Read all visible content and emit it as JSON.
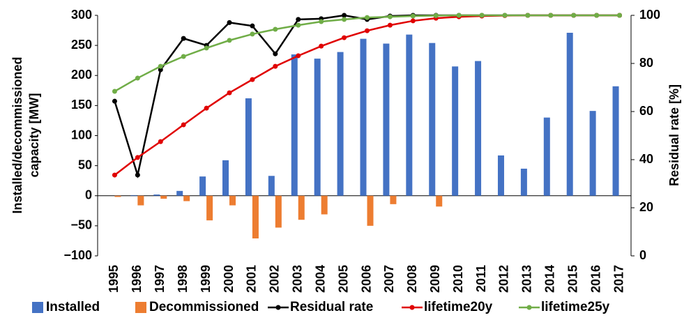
{
  "chart_data": {
    "type": "bar",
    "categories": [
      "1995",
      "1996",
      "1997",
      "1998",
      "1999",
      "2000",
      "2001",
      "2002",
      "2003",
      "2004",
      "2005",
      "2006",
      "2007",
      "2008",
      "2009",
      "2010",
      "2011",
      "2012",
      "2013",
      "2014",
      "2015",
      "2016",
      "2017"
    ],
    "ylabel": [
      "Installed/decommissioned",
      "capacity [MW]"
    ],
    "y2label": "Residual rate [%]",
    "ylim": [
      -100,
      300
    ],
    "yticks": [
      {
        "value": -100,
        "label": "−100"
      },
      {
        "value": -50,
        "label": "−50"
      },
      0,
      50,
      100,
      150,
      200,
      250,
      300
    ],
    "y2lim": [
      0,
      100
    ],
    "y2ticks": [
      0,
      20,
      40,
      60,
      80,
      100
    ],
    "series": [
      {
        "name": "Installed",
        "type": "bar",
        "color": "#4472c4",
        "values": [
          0,
          1,
          2,
          8,
          32,
          59,
          162,
          33,
          235,
          228,
          239,
          261,
          253,
          268,
          254,
          215,
          224,
          67,
          45,
          130,
          271,
          141,
          182
        ]
      },
      {
        "name": "Decommissioned",
        "type": "bar",
        "color": "#ed7d31",
        "values": [
          -2,
          -16,
          -5,
          -9,
          -41,
          -16,
          -71,
          -53,
          -40,
          -31,
          0,
          -50,
          -14,
          0,
          -18,
          0,
          0,
          0,
          0,
          0,
          0,
          0,
          0
        ]
      },
      {
        "name": "Residual rate",
        "type": "line",
        "axis": "y2",
        "color": "#000000",
        "values": [
          64.3,
          33.6,
          77.4,
          90.4,
          87.5,
          97,
          95.6,
          84,
          98.3,
          98.6,
          100,
          98.3,
          99.7,
          100,
          100,
          100,
          100,
          100,
          100,
          100,
          100,
          100,
          100
        ]
      },
      {
        "name": "lifetime20y",
        "type": "line",
        "axis": "y2",
        "color": "#e00000",
        "values": [
          33.6,
          40.9,
          47.5,
          54.5,
          61.4,
          67.8,
          73.3,
          78.8,
          83.2,
          87.2,
          90.7,
          93.6,
          95.9,
          97.7,
          98.8,
          99.4,
          99.7,
          99.9,
          100,
          100,
          100,
          100,
          100
        ]
      },
      {
        "name": "lifetime25y",
        "type": "line",
        "axis": "y2",
        "color": "#70ad47",
        "values": [
          68.4,
          73.9,
          78.8,
          82.9,
          86.4,
          89.6,
          92.2,
          94.2,
          95.9,
          97.4,
          98.3,
          99.1,
          99.4,
          99.7,
          99.9,
          100,
          100,
          100,
          100,
          100,
          100,
          100,
          100
        ]
      }
    ]
  }
}
